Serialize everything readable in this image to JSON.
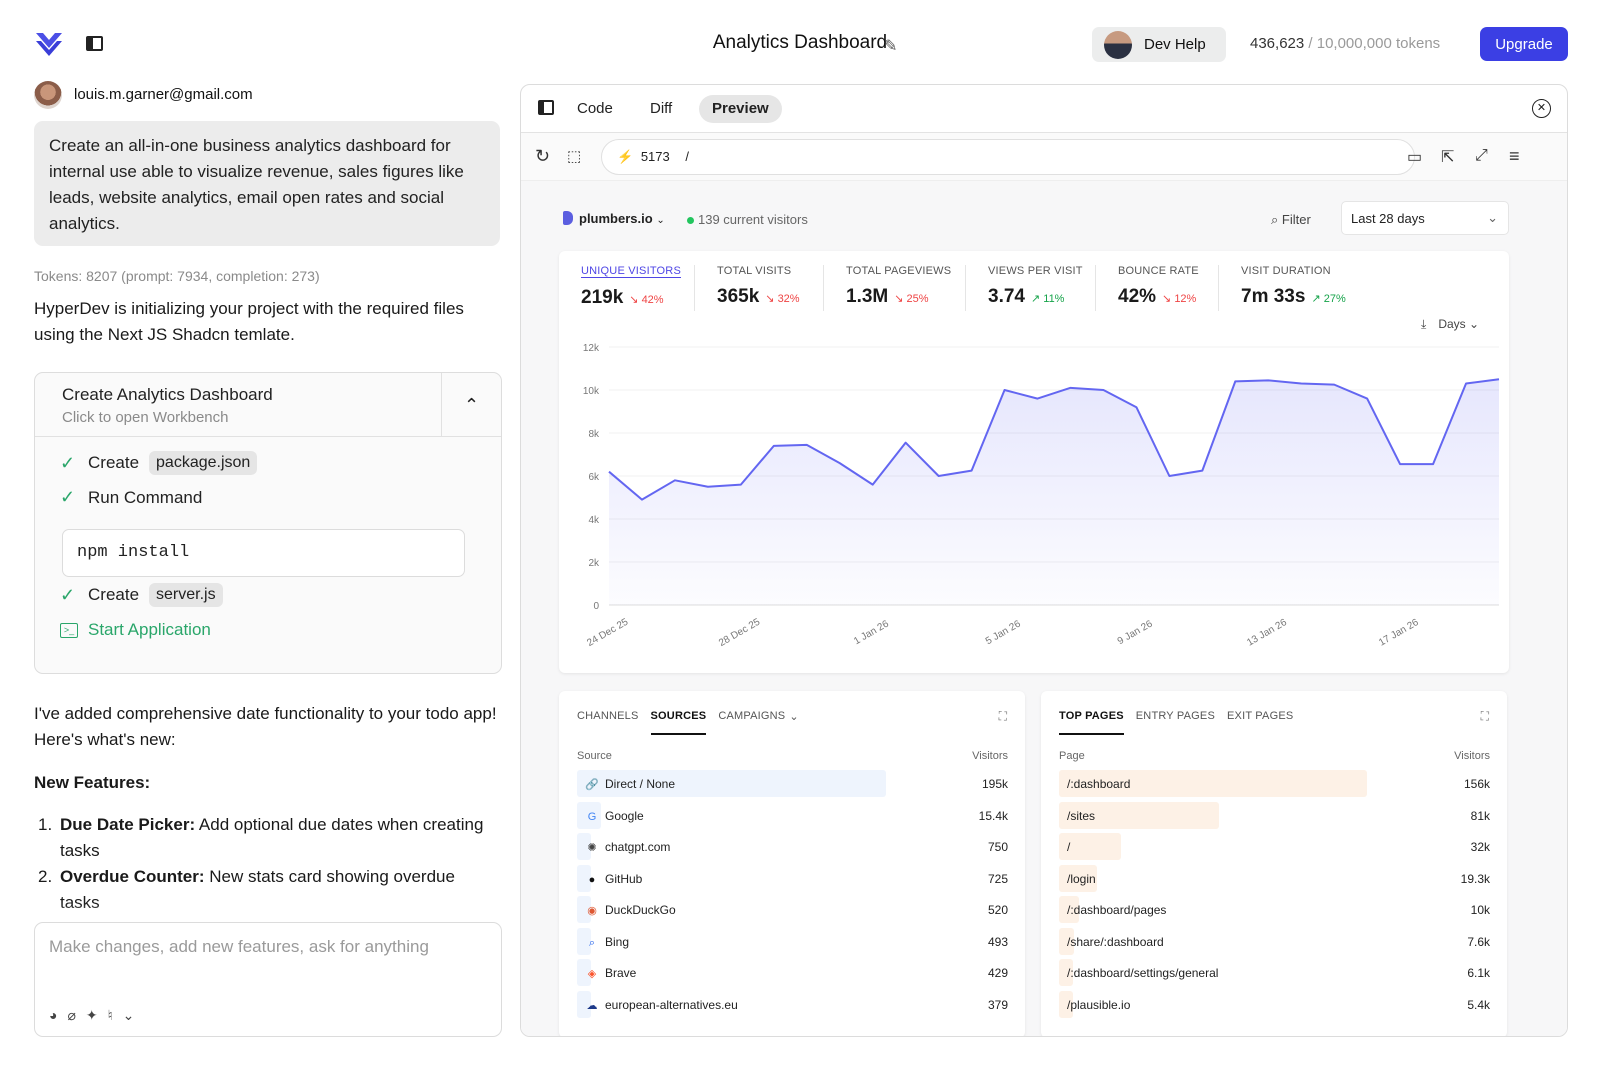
{
  "header": {
    "title": "Analytics Dashboard",
    "dev_help": "Dev Help",
    "tokens_used": "436,623",
    "tokens_total": "/ 10,000,000 tokens",
    "upgrade": "Upgrade"
  },
  "chat": {
    "user_email": "louis.m.garner@gmail.com",
    "prompt": "Create an all-in-one business analytics dashboard for internal use able to visualize revenue, sales figures like leads, website analytics, email open rates and social analytics.",
    "token_info": "Tokens: 8207 (prompt: 7934, completion: 273)",
    "reply1": "HyperDev is initializing your project with the required files using the Next JS Shadcn temlate.",
    "workbench": {
      "title": "Create Analytics Dashboard",
      "subtitle": "Click to open Workbench",
      "step1_action": "Create",
      "step1_file": "package.json",
      "step2_action": "Run Command",
      "command": "npm install",
      "step3_action": "Create",
      "step3_file": "server.js",
      "step4_action": "Start Application"
    },
    "reply2": "I've added comprehensive date functionality to your todo app! Here's what's new:",
    "features_heading": "New Features:",
    "features": [
      {
        "num": "1.",
        "title": "Due Date Picker:",
        "text": "Add optional due dates when creating tasks"
      },
      {
        "num": "2.",
        "title": "Overdue Counter:",
        "text": "New stats card showing overdue tasks"
      }
    ],
    "input_placeholder": "Make changes, add new features, ask for anything"
  },
  "preview": {
    "tabs": [
      "Code",
      "Diff",
      "Preview"
    ],
    "active_tab": "Preview",
    "port": "5173",
    "path": "/",
    "site": "plumbers.io",
    "current_visitors": "139 current visitors",
    "filter": "Filter",
    "range": "Last 28 days",
    "interval": "Days",
    "stats": [
      {
        "label": "UNIQUE VISITORS",
        "value": "219k",
        "change": "42%",
        "dir": "down"
      },
      {
        "label": "TOTAL VISITS",
        "value": "365k",
        "change": "32%",
        "dir": "down"
      },
      {
        "label": "TOTAL PAGEVIEWS",
        "value": "1.3M",
        "change": "25%",
        "dir": "down"
      },
      {
        "label": "VIEWS PER VISIT",
        "value": "3.74",
        "change": "11%",
        "dir": "up"
      },
      {
        "label": "BOUNCE RATE",
        "value": "42%",
        "change": "12%",
        "dir": "down"
      },
      {
        "label": "VISIT DURATION",
        "value": "7m 33s",
        "change": "27%",
        "dir": "up"
      }
    ],
    "sources": {
      "tabs": [
        "CHANNELS",
        "SOURCES",
        "CAMPAIGNS"
      ],
      "active": "SOURCES",
      "col1": "Source",
      "col2": "Visitors",
      "rows": [
        {
          "name": "Direct / None",
          "value": "195k",
          "frac": 1.0,
          "icon": "link-icon"
        },
        {
          "name": "Google",
          "value": "15.4k",
          "frac": 0.079,
          "icon": "google-icon"
        },
        {
          "name": "chatgpt.com",
          "value": "750",
          "frac": 0.004,
          "icon": "chatgpt-icon"
        },
        {
          "name": "GitHub",
          "value": "725",
          "frac": 0.004,
          "icon": "github-icon"
        },
        {
          "name": "DuckDuckGo",
          "value": "520",
          "frac": 0.003,
          "icon": "duckduckgo-icon"
        },
        {
          "name": "Bing",
          "value": "493",
          "frac": 0.003,
          "icon": "bing-icon"
        },
        {
          "name": "Brave",
          "value": "429",
          "frac": 0.002,
          "icon": "brave-icon"
        },
        {
          "name": "european-alternatives.eu",
          "value": "379",
          "frac": 0.002,
          "icon": "cloud-icon"
        }
      ]
    },
    "pages": {
      "tabs": [
        "TOP PAGES",
        "ENTRY PAGES",
        "EXIT PAGES"
      ],
      "active": "TOP PAGES",
      "col1": "Page",
      "col2": "Visitors",
      "rows": [
        {
          "name": "/:dashboard",
          "value": "156k",
          "frac": 1.0
        },
        {
          "name": "/sites",
          "value": "81k",
          "frac": 0.52
        },
        {
          "name": "/",
          "value": "32k",
          "frac": 0.2
        },
        {
          "name": "/login",
          "value": "19.3k",
          "frac": 0.124
        },
        {
          "name": "/:dashboard/pages",
          "value": "10k",
          "frac": 0.064
        },
        {
          "name": "/share/:dashboard",
          "value": "7.6k",
          "frac": 0.049
        },
        {
          "name": "/:dashboard/settings/general",
          "value": "6.1k",
          "frac": 0.039
        },
        {
          "name": "/plausible.io",
          "value": "5.4k",
          "frac": 0.035
        }
      ]
    }
  },
  "chart_data": {
    "type": "area",
    "x": [
      "24 Dec 25",
      "25 Dec 25",
      "26 Dec 25",
      "27 Dec 25",
      "28 Dec 25",
      "29 Dec 25",
      "30 Dec 25",
      "31 Dec 25",
      "1 Jan 26",
      "2 Jan 26",
      "3 Jan 26",
      "4 Jan 26",
      "5 Jan 26",
      "6 Jan 26",
      "7 Jan 26",
      "8 Jan 26",
      "9 Jan 26",
      "10 Jan 26",
      "11 Jan 26",
      "12 Jan 26",
      "13 Jan 26",
      "14 Jan 26",
      "15 Jan 26",
      "16 Jan 26",
      "17 Jan 26",
      "18 Jan 26",
      "19 Jan 26",
      "20 Jan 26"
    ],
    "tick_labels": [
      "24 Dec 25",
      "28 Dec 25",
      "1 Jan 26",
      "5 Jan 26",
      "9 Jan 26",
      "13 Jan 26",
      "17 Jan 26"
    ],
    "series": [
      {
        "values": [
          6200,
          4900,
          5800,
          5500,
          5600,
          7400,
          7450,
          6600,
          5600,
          7550,
          6000,
          6250,
          10000,
          9600,
          10100,
          10000,
          9200,
          6000,
          6250,
          10400,
          10450,
          10300,
          10250,
          9600,
          6550,
          6550,
          10300,
          10500
        ]
      }
    ],
    "ylim": [
      0,
      12000
    ],
    "yticks": [
      "0",
      "2k",
      "4k",
      "6k",
      "8k",
      "10k",
      "12k"
    ],
    "grid": true,
    "color": "#6366f1"
  }
}
